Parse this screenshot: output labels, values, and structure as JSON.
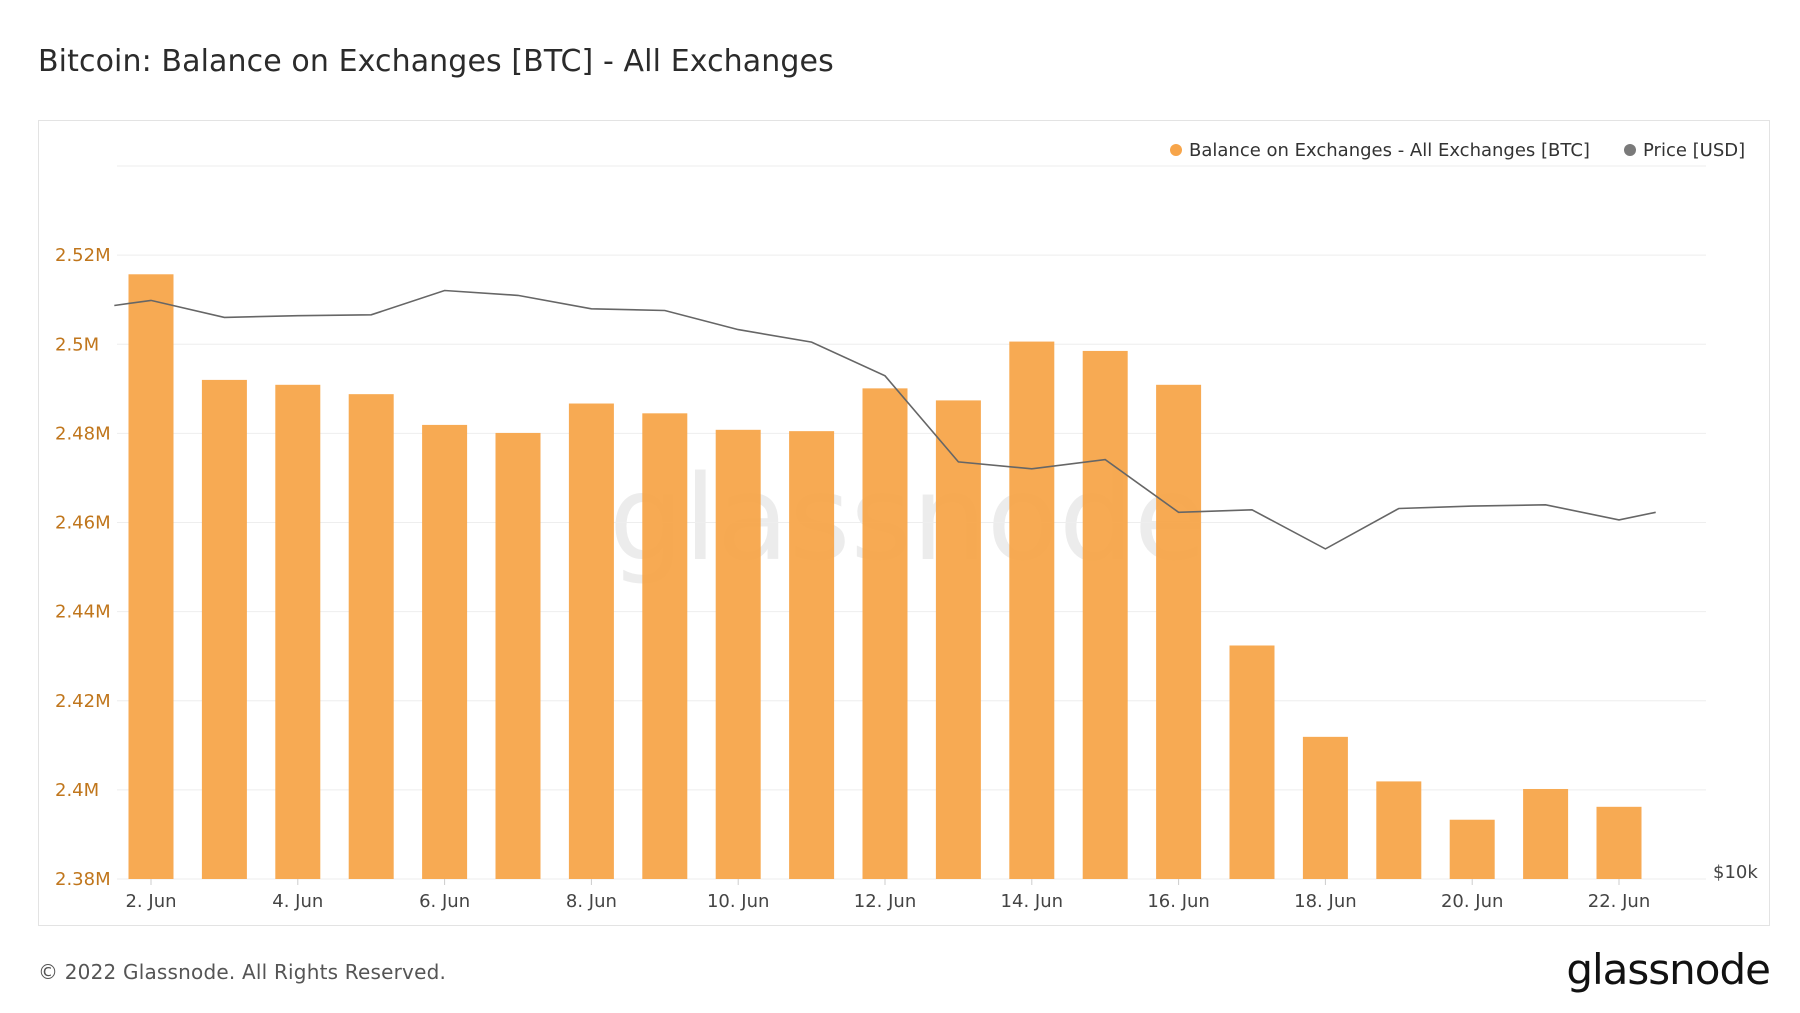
{
  "title": "Bitcoin: Balance on Exchanges [BTC] - All Exchanges",
  "footer": {
    "copyright": "© 2022 Glassnode. All Rights Reserved.",
    "logo_text": "glassnode"
  },
  "watermark": "glassnode",
  "colors": {
    "bar": "#F7A54A",
    "price_line": "#666666",
    "price_legend_dot": "#7a7a7a",
    "ytick_text": "#c0761c",
    "grid": "#eeeeee"
  },
  "chart_data": {
    "type": "bar",
    "legend_position": "top-right",
    "grid": true,
    "legend": [
      {
        "label": "Balance on Exchanges - All Exchanges [BTC]",
        "color": "#F7A54A",
        "marker": "dot"
      },
      {
        "label": "Price [USD]",
        "color": "#7a7a7a",
        "marker": "dot"
      }
    ],
    "x": [
      "2022-06-02",
      "2022-06-03",
      "2022-06-04",
      "2022-06-05",
      "2022-06-06",
      "2022-06-07",
      "2022-06-08",
      "2022-06-09",
      "2022-06-10",
      "2022-06-11",
      "2022-06-12",
      "2022-06-13",
      "2022-06-14",
      "2022-06-15",
      "2022-06-16",
      "2022-06-17",
      "2022-06-18",
      "2022-06-19",
      "2022-06-20",
      "2022-06-21",
      "2022-06-22"
    ],
    "x_tick_labels": [
      {
        "date": "2022-06-02",
        "label": "2. Jun"
      },
      {
        "date": "2022-06-04",
        "label": "4. Jun"
      },
      {
        "date": "2022-06-06",
        "label": "6. Jun"
      },
      {
        "date": "2022-06-08",
        "label": "8. Jun"
      },
      {
        "date": "2022-06-10",
        "label": "10. Jun"
      },
      {
        "date": "2022-06-12",
        "label": "12. Jun"
      },
      {
        "date": "2022-06-14",
        "label": "14. Jun"
      },
      {
        "date": "2022-06-16",
        "label": "16. Jun"
      },
      {
        "date": "2022-06-18",
        "label": "18. Jun"
      },
      {
        "date": "2022-06-20",
        "label": "20. Jun"
      },
      {
        "date": "2022-06-22",
        "label": "22. Jun"
      }
    ],
    "y_left": {
      "ylim": [
        2380000,
        2540000
      ],
      "ticks": [
        2380000,
        2400000,
        2420000,
        2440000,
        2460000,
        2480000,
        2500000,
        2520000
      ],
      "tick_labels": [
        "2.38M",
        "2.4M",
        "2.42M",
        "2.44M",
        "2.46M",
        "2.48M",
        "2.5M",
        "2.52M"
      ]
    },
    "y_right": {
      "scale": "log",
      "tick_labels": [
        "$10k"
      ]
    },
    "series": [
      {
        "name": "Balance on Exchanges - All Exchanges [BTC]",
        "type": "bar",
        "axis": "left",
        "values": [
          2515700,
          2492000,
          2490900,
          2488800,
          2481900,
          2480100,
          2486700,
          2484500,
          2480800,
          2480500,
          2490100,
          2487400,
          2500600,
          2498500,
          2490900,
          2432400,
          2411900,
          2401900,
          2393300,
          2400200,
          2396200
        ]
      },
      {
        "name": "Price [USD]",
        "type": "line",
        "axis": "right",
        "x": [
          "2022-06-01T12:00",
          "2022-06-02",
          "2022-06-03",
          "2022-06-04",
          "2022-06-05",
          "2022-06-06",
          "2022-06-07",
          "2022-06-08",
          "2022-06-09",
          "2022-06-10",
          "2022-06-11",
          "2022-06-12",
          "2022-06-13",
          "2022-06-14",
          "2022-06-15",
          "2022-06-16",
          "2022-06-17",
          "2022-06-18",
          "2022-06-19",
          "2022-06-20",
          "2022-06-21",
          "2022-06-22",
          "2022-06-22T12:00"
        ],
        "values": [
          30500,
          30800,
          29800,
          29900,
          29950,
          31400,
          31100,
          30300,
          30200,
          29100,
          28400,
          26600,
          22500,
          22200,
          22600,
          20400,
          20500,
          19000,
          20550,
          20650,
          20700,
          20100,
          20400
        ]
      }
    ]
  }
}
